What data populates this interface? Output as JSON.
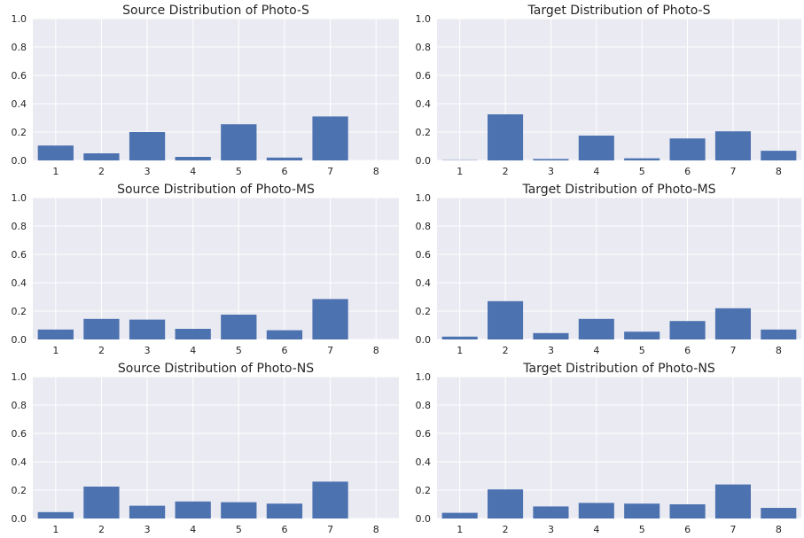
{
  "colors": {
    "panel_bg": "#eaeaf2",
    "grid": "#ffffff",
    "bar": "#4c72b0"
  },
  "chart_data": [
    {
      "type": "bar",
      "title": "Source Distribution of Photo-S",
      "categories": [
        "1",
        "2",
        "3",
        "4",
        "5",
        "6",
        "7",
        "8"
      ],
      "values": [
        0.105,
        0.05,
        0.2,
        0.025,
        0.255,
        0.02,
        0.31,
        0.0
      ],
      "ylim": [
        0,
        1.0
      ],
      "yticks": [
        "0.0",
        "0.2",
        "0.4",
        "0.6",
        "0.8",
        "1.0"
      ],
      "grid": true
    },
    {
      "type": "bar",
      "title": "Target Distribution of Photo-S",
      "categories": [
        "1",
        "2",
        "3",
        "4",
        "5",
        "6",
        "7",
        "8"
      ],
      "values": [
        0.002,
        0.325,
        0.01,
        0.175,
        0.015,
        0.155,
        0.205,
        0.068
      ],
      "ylim": [
        0,
        1.0
      ],
      "yticks": [
        "0.0",
        "0.2",
        "0.4",
        "0.6",
        "0.8",
        "1.0"
      ],
      "grid": true
    },
    {
      "type": "bar",
      "title": "Source Distribution of Photo-MS",
      "categories": [
        "1",
        "2",
        "3",
        "4",
        "5",
        "6",
        "7",
        "8"
      ],
      "values": [
        0.07,
        0.145,
        0.14,
        0.075,
        0.175,
        0.065,
        0.285,
        0.0
      ],
      "ylim": [
        0,
        1.0
      ],
      "yticks": [
        "0.0",
        "0.2",
        "0.4",
        "0.6",
        "0.8",
        "1.0"
      ],
      "grid": true
    },
    {
      "type": "bar",
      "title": "Target Distribution of Photo-MS",
      "categories": [
        "1",
        "2",
        "3",
        "4",
        "5",
        "6",
        "7",
        "8"
      ],
      "values": [
        0.02,
        0.27,
        0.045,
        0.145,
        0.055,
        0.13,
        0.22,
        0.07
      ],
      "ylim": [
        0,
        1.0
      ],
      "yticks": [
        "0.0",
        "0.2",
        "0.4",
        "0.6",
        "0.8",
        "1.0"
      ],
      "grid": true
    },
    {
      "type": "bar",
      "title": "Source Distribution of Photo-NS",
      "categories": [
        "1",
        "2",
        "3",
        "4",
        "5",
        "6",
        "7",
        "8"
      ],
      "values": [
        0.045,
        0.225,
        0.09,
        0.12,
        0.115,
        0.105,
        0.26,
        0.0
      ],
      "ylim": [
        0,
        1.0
      ],
      "yticks": [
        "0.0",
        "0.2",
        "0.4",
        "0.6",
        "0.8",
        "1.0"
      ],
      "grid": true
    },
    {
      "type": "bar",
      "title": "Target Distribution of Photo-NS",
      "categories": [
        "1",
        "2",
        "3",
        "4",
        "5",
        "6",
        "7",
        "8"
      ],
      "values": [
        0.04,
        0.205,
        0.085,
        0.11,
        0.105,
        0.1,
        0.24,
        0.075
      ],
      "ylim": [
        0,
        1.0
      ],
      "yticks": [
        "0.0",
        "0.2",
        "0.4",
        "0.6",
        "0.8",
        "1.0"
      ],
      "grid": true
    }
  ]
}
